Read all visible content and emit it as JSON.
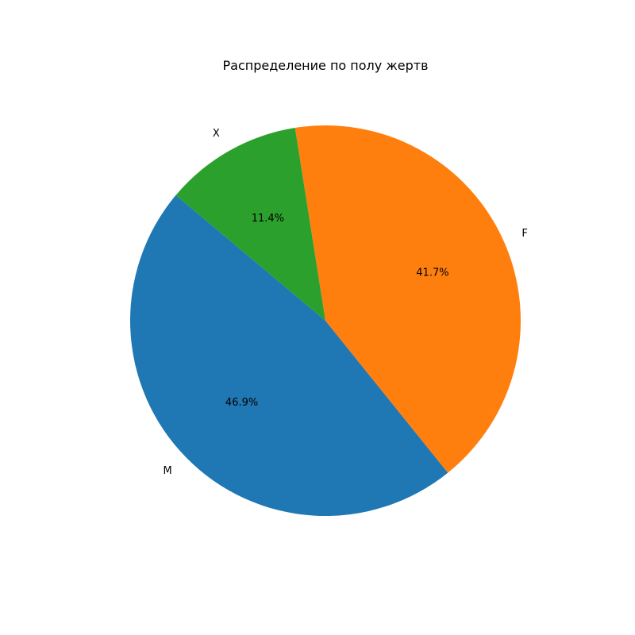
{
  "chart_data": {
    "type": "pie",
    "title": "Распределение по полу жертв",
    "categories": [
      "M",
      "F",
      "X"
    ],
    "values": [
      46.9,
      41.7,
      11.4
    ],
    "value_labels": [
      "46.9%",
      "41.7%",
      "11.4%"
    ],
    "colors": [
      "#1f77b4",
      "#ff7f0e",
      "#2ca02c"
    ],
    "start_angle_deg": 140,
    "direction": "counterclockwise",
    "legend": "none"
  }
}
